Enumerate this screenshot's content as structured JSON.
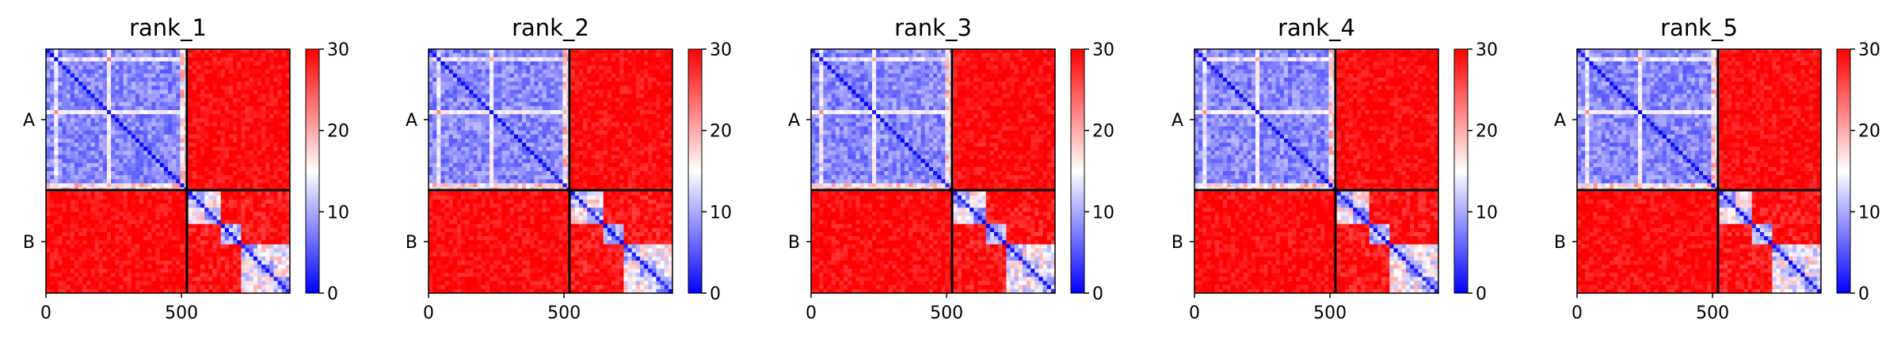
{
  "figure": {
    "panels": [
      "rank_1",
      "rank_2",
      "rank_3",
      "rank_4",
      "rank_5"
    ]
  },
  "chart_data": {
    "type": "heatmap",
    "description_text": "",
    "colormap": [
      "#0000ff",
      "#ffffff",
      "#ff0000"
    ],
    "colorbar": {
      "min": 0,
      "max": 30,
      "ticks": [
        0,
        10,
        20,
        30
      ]
    },
    "matrix_size": 900,
    "chain_boundary": 520,
    "x_ticks": [
      0,
      500
    ],
    "x_tick_labels": [
      "0",
      "500"
    ],
    "y_labels": [
      "A",
      "B"
    ],
    "titles": [
      "rank_1",
      "rank_2",
      "rank_3",
      "rank_4",
      "rank_5"
    ]
  }
}
